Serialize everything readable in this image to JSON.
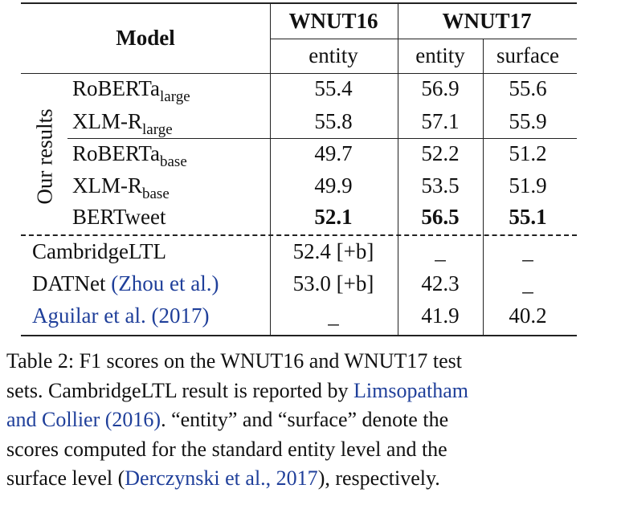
{
  "header": {
    "model": "Model",
    "wnut16": "WNUT16",
    "wnut17": "WNUT17",
    "entity16": "entity",
    "entity17": "entity",
    "surface17": "surface"
  },
  "group_label": "Our results",
  "rows": [
    {
      "model": "RoBERTa",
      "sub": "large",
      "w16_entity": "55.4",
      "w17_entity": "56.9",
      "w17_surface": "55.6"
    },
    {
      "model": "XLM-R",
      "sub": "large",
      "w16_entity": "55.8",
      "w17_entity": "57.1",
      "w17_surface": "55.9"
    },
    {
      "model": "RoBERTa",
      "sub": "base",
      "w16_entity": "49.7",
      "w17_entity": "52.2",
      "w17_surface": "51.2"
    },
    {
      "model": "XLM-R",
      "sub": "base",
      "w16_entity": "49.9",
      "w17_entity": "53.5",
      "w17_surface": "51.9"
    },
    {
      "model": "BERTweet",
      "sub": "",
      "w16_entity": "52.1",
      "w17_entity": "56.5",
      "w17_surface": "55.1"
    }
  ],
  "other_rows": [
    {
      "model": "CambridgeLTL",
      "cite": "",
      "w16_entity": "52.4 [+b]",
      "w17_entity": "_",
      "w17_surface": "_"
    },
    {
      "model": "DATNet",
      "cite": "(Zhou et al.)",
      "w16_entity": "53.0 [+b]",
      "w17_entity": "42.3",
      "w17_surface": "_"
    },
    {
      "model": "",
      "cite": "Aguilar et al. (2017)",
      "w16_entity": "_",
      "w17_entity": "41.9",
      "w17_surface": "40.2"
    }
  ],
  "caption": {
    "l1": "Table 2: F1 scores on the WNUT16 and WNUT17 test",
    "l2a": "sets. CambridgeLTL result is reported by ",
    "l2b": "Limsopatham",
    "l3a": "and Collier (2016)",
    "l3b": ". “entity” and “surface” denote the",
    "l4": "scores computed for the standard entity level and the",
    "l5a": "surface level (",
    "l5b": "Derczynski et al., 2017",
    "l5c": "), respectively."
  },
  "colors": {
    "link": "#1f3f9a",
    "text": "#111111"
  }
}
